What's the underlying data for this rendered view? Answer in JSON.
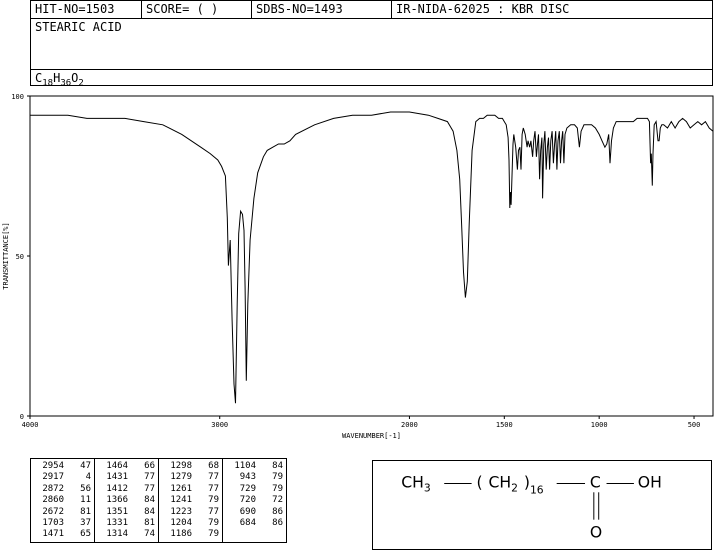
{
  "header": {
    "hit_no": "HIT-NO=1503",
    "score": "SCORE=  (   )",
    "sdbs_no": "SDBS-NO=1493",
    "ir_nida": "IR-NIDA-62025 : KBR DISC",
    "compound_name": "STEARIC ACID",
    "formula": {
      "c": "C",
      "c_sub": "18",
      "h": "H",
      "h_sub": "36",
      "o": "O",
      "o_sub": "2"
    }
  },
  "chart_data": {
    "type": "line",
    "xlabel": "WAVENUMBER[-1]",
    "ylabel": "TRANSMITTANCE[%]",
    "xlim": [
      4000,
      400
    ],
    "ylim": [
      0,
      100
    ],
    "x_ticks": [
      4000,
      3000,
      2000,
      1500,
      1000,
      500
    ],
    "y_ticks": [
      0,
      50,
      100
    ],
    "line_color": "#000000",
    "series": [
      {
        "x": [
          4000,
          3900,
          3800,
          3700,
          3600,
          3500,
          3400,
          3300,
          3200,
          3100,
          3050,
          3010,
          2990,
          2970,
          2960,
          2954,
          2945,
          2935,
          2925,
          2917,
          2908,
          2900,
          2890,
          2880,
          2872,
          2866,
          2860,
          2852,
          2840,
          2820,
          2800,
          2770,
          2750,
          2720,
          2690,
          2660,
          2630,
          2600,
          2500,
          2400,
          2300,
          2200,
          2100,
          2000,
          1900,
          1850,
          1800,
          1770,
          1750,
          1735,
          1725,
          1715,
          1705,
          1695,
          1685,
          1670,
          1650,
          1630,
          1610,
          1590,
          1570,
          1550,
          1530,
          1510,
          1500,
          1490,
          1480,
          1475,
          1471,
          1468,
          1464,
          1458,
          1454,
          1450,
          1440,
          1431,
          1425,
          1418,
          1412,
          1406,
          1400,
          1390,
          1380,
          1375,
          1366,
          1360,
          1351,
          1345,
          1338,
          1331,
          1325,
          1320,
          1314,
          1308,
          1302,
          1298,
          1292,
          1286,
          1279,
          1273,
          1267,
          1261,
          1255,
          1248,
          1241,
          1235,
          1229,
          1223,
          1217,
          1210,
          1204,
          1198,
          1192,
          1186,
          1180,
          1170,
          1150,
          1130,
          1115,
          1104,
          1095,
          1080,
          1060,
          1040,
          1020,
          1000,
          985,
          970,
          960,
          950,
          943,
          935,
          925,
          910,
          890,
          870,
          850,
          820,
          800,
          780,
          760,
          745,
          735,
          729,
          725,
          720,
          716,
          710,
          700,
          690,
          684,
          678,
          670,
          660,
          640,
          620,
          600,
          580,
          560,
          540,
          520,
          500,
          480,
          460,
          440,
          420,
          400
        ],
        "y": [
          94,
          94,
          94,
          93,
          93,
          93,
          92,
          91,
          88,
          84,
          82,
          80,
          78,
          75,
          62,
          47,
          55,
          30,
          10,
          4,
          35,
          57,
          64,
          63,
          58,
          40,
          11,
          35,
          55,
          68,
          76,
          81,
          83,
          84,
          85,
          85,
          86,
          88,
          91,
          93,
          94,
          94,
          95,
          95,
          94,
          93,
          92,
          89,
          83,
          74,
          60,
          45,
          37,
          42,
          60,
          83,
          92,
          93,
          93,
          94,
          94,
          94,
          93,
          93,
          92,
          91,
          87,
          80,
          65,
          70,
          66,
          78,
          85,
          88,
          84,
          77,
          83,
          84,
          77,
          88,
          90,
          88,
          84,
          86,
          84,
          86,
          81,
          86,
          89,
          81,
          85,
          88,
          74,
          83,
          87,
          68,
          85,
          89,
          77,
          84,
          87,
          77,
          86,
          89,
          79,
          85,
          89,
          77,
          86,
          89,
          79,
          86,
          89,
          79,
          88,
          90,
          91,
          91,
          90,
          84,
          89,
          91,
          91,
          91,
          90,
          88,
          86,
          84,
          85,
          88,
          79,
          86,
          90,
          92,
          92,
          92,
          92,
          92,
          93,
          93,
          93,
          93,
          92,
          79,
          82,
          72,
          82,
          91,
          92,
          86,
          86,
          90,
          91,
          91,
          90,
          92,
          90,
          92,
          93,
          92,
          90,
          91,
          92,
          91,
          92,
          90,
          89
        ]
      }
    ]
  },
  "peaks": {
    "columns": [
      [
        [
          "2954",
          "47"
        ],
        [
          "2917",
          "4"
        ],
        [
          "2872",
          "56"
        ],
        [
          "2860",
          "11"
        ],
        [
          "2672",
          "81"
        ],
        [
          "1703",
          "37"
        ],
        [
          "1471",
          "65"
        ]
      ],
      [
        [
          "1464",
          "66"
        ],
        [
          "1431",
          "77"
        ],
        [
          "1412",
          "77"
        ],
        [
          "1366",
          "84"
        ],
        [
          "1351",
          "84"
        ],
        [
          "1331",
          "81"
        ],
        [
          "1314",
          "74"
        ]
      ],
      [
        [
          "1298",
          "68"
        ],
        [
          "1279",
          "77"
        ],
        [
          "1261",
          "77"
        ],
        [
          "1241",
          "79"
        ],
        [
          "1223",
          "77"
        ],
        [
          "1204",
          "79"
        ],
        [
          "1186",
          "79"
        ]
      ],
      [
        [
          "1104",
          "84"
        ],
        [
          "943",
          "79"
        ],
        [
          "729",
          "79"
        ],
        [
          "720",
          "72"
        ],
        [
          "690",
          "86"
        ],
        [
          "684",
          "86"
        ]
      ]
    ]
  },
  "structure": {
    "ch3": "CH",
    "ch3_sub": "3",
    "open_paren": "(",
    "ch2": "CH",
    "ch2_sub": "2",
    "close_paren": ")",
    "n": "16",
    "carbon": "C",
    "oh": "OH",
    "oxygen": "O"
  }
}
